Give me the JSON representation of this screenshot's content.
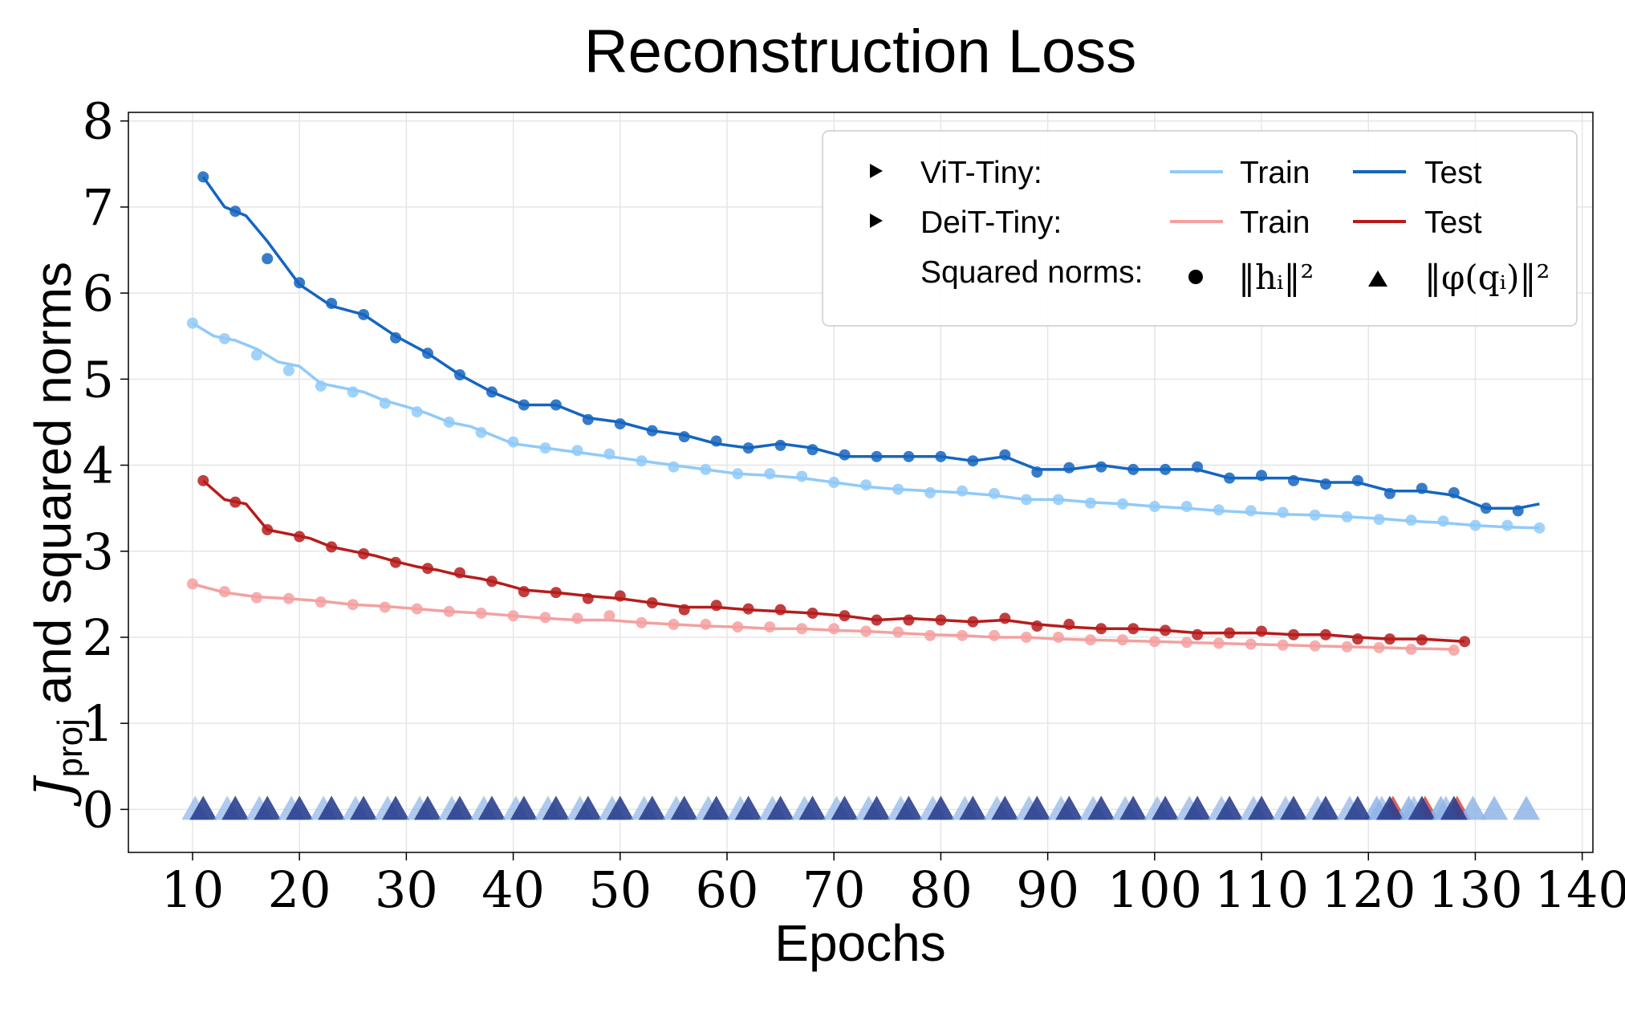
{
  "chart_data": {
    "type": "line",
    "title": "Reconstruction Loss",
    "xlabel": "Epochs",
    "ylabel_main": "J",
    "ylabel_sub": "proj",
    "ylabel_rest": " and squared norms",
    "xlim": [
      4,
      141
    ],
    "ylim": [
      -0.5,
      8.1
    ],
    "xticks": [
      10,
      20,
      30,
      40,
      50,
      60,
      70,
      80,
      90,
      100,
      110,
      120,
      130,
      140
    ],
    "yticks": [
      0,
      1,
      2,
      3,
      4,
      5,
      6,
      7,
      8
    ],
    "grid": true,
    "legend": {
      "placement": "top-right",
      "vit_label": "ViT-Tiny:",
      "deit_label": "DeiT-Tiny:",
      "train_label": "Train",
      "test_label": "Test",
      "norms_label": "Squared norms:",
      "h_label": "‖hᵢ‖²",
      "phi_label": "‖φ(qᵢ)‖²"
    },
    "colors": {
      "vit_train": "#90caf9",
      "vit_test": "#1565c0",
      "deit_train": "#f4a0a0",
      "deit_test": "#b71c1c",
      "triangle_blue": "#2b3f8f",
      "triangle_light": "#8fb4e8",
      "triangle_red": "#d64545"
    },
    "series": [
      {
        "name": "ViT-Tiny Test",
        "x": [
          11,
          13,
          15,
          17,
          20,
          23,
          26,
          29,
          32,
          35,
          38,
          41,
          44,
          47,
          50,
          53,
          56,
          59,
          62,
          65,
          68,
          71,
          74,
          77,
          80,
          83,
          86,
          89,
          92,
          95,
          98,
          101,
          104,
          107,
          110,
          113,
          116,
          119,
          122,
          125,
          128,
          131,
          134,
          136
        ],
        "y": [
          7.35,
          7.0,
          6.9,
          6.6,
          6.1,
          5.85,
          5.75,
          5.5,
          5.3,
          5.05,
          4.85,
          4.7,
          4.7,
          4.55,
          4.5,
          4.4,
          4.35,
          4.25,
          4.2,
          4.25,
          4.2,
          4.1,
          4.1,
          4.1,
          4.1,
          4.05,
          4.1,
          3.95,
          3.95,
          4.0,
          3.95,
          3.95,
          3.95,
          3.85,
          3.85,
          3.85,
          3.8,
          3.8,
          3.7,
          3.7,
          3.65,
          3.5,
          3.5,
          3.55
        ],
        "markers_x": [
          11,
          14,
          17,
          20,
          23,
          26,
          29,
          32,
          35,
          38,
          41,
          44,
          47,
          50,
          53,
          56,
          59,
          62,
          65,
          68,
          71,
          74,
          77,
          80,
          83,
          86,
          89,
          92,
          95,
          98,
          101,
          104,
          107,
          110,
          113,
          116,
          119,
          122,
          125,
          128,
          131,
          134
        ],
        "markers_y": [
          7.35,
          6.95,
          6.4,
          6.12,
          5.88,
          5.75,
          5.48,
          5.3,
          5.05,
          4.85,
          4.7,
          4.7,
          4.53,
          4.48,
          4.4,
          4.33,
          4.28,
          4.2,
          4.23,
          4.18,
          4.12,
          4.1,
          4.1,
          4.1,
          4.05,
          4.12,
          3.92,
          3.97,
          3.98,
          3.95,
          3.95,
          3.98,
          3.85,
          3.88,
          3.82,
          3.78,
          3.82,
          3.67,
          3.73,
          3.68,
          3.5,
          3.47
        ]
      },
      {
        "name": "ViT-Tiny Train",
        "x": [
          10,
          12,
          14,
          16,
          18,
          20,
          22,
          24,
          26,
          28,
          30,
          32,
          34,
          36,
          38,
          40,
          43,
          46,
          49,
          52,
          55,
          58,
          61,
          64,
          67,
          70,
          73,
          76,
          79,
          82,
          85,
          88,
          91,
          94,
          97,
          100,
          103,
          106,
          109,
          112,
          115,
          118,
          121,
          124,
          127,
          130,
          133,
          136
        ],
        "y": [
          5.65,
          5.5,
          5.45,
          5.35,
          5.2,
          5.15,
          4.95,
          4.9,
          4.85,
          4.75,
          4.68,
          4.6,
          4.5,
          4.45,
          4.35,
          4.25,
          4.2,
          4.15,
          4.1,
          4.05,
          4.0,
          3.95,
          3.9,
          3.88,
          3.85,
          3.8,
          3.75,
          3.72,
          3.7,
          3.68,
          3.65,
          3.6,
          3.6,
          3.57,
          3.55,
          3.52,
          3.5,
          3.47,
          3.45,
          3.43,
          3.42,
          3.4,
          3.38,
          3.35,
          3.33,
          3.3,
          3.28,
          3.27
        ],
        "markers_x": [
          10,
          13,
          16,
          19,
          22,
          25,
          28,
          31,
          34,
          37,
          40,
          43,
          46,
          49,
          52,
          55,
          58,
          61,
          64,
          67,
          70,
          73,
          76,
          79,
          82,
          85,
          88,
          91,
          94,
          97,
          100,
          103,
          106,
          109,
          112,
          115,
          118,
          121,
          124,
          127,
          130,
          133,
          136
        ],
        "markers_y": [
          5.65,
          5.47,
          5.28,
          5.1,
          4.92,
          4.85,
          4.72,
          4.62,
          4.5,
          4.38,
          4.27,
          4.2,
          4.17,
          4.13,
          4.05,
          3.98,
          3.95,
          3.9,
          3.9,
          3.87,
          3.8,
          3.77,
          3.72,
          3.68,
          3.7,
          3.67,
          3.6,
          3.6,
          3.56,
          3.55,
          3.52,
          3.52,
          3.48,
          3.47,
          3.45,
          3.42,
          3.4,
          3.37,
          3.36,
          3.35,
          3.3,
          3.3,
          3.27
        ]
      },
      {
        "name": "DeiT-Tiny Test",
        "x": [
          11,
          13,
          15,
          17,
          19,
          21,
          23,
          25,
          27,
          29,
          31,
          33,
          35,
          37,
          39,
          41,
          44,
          47,
          50,
          53,
          56,
          59,
          62,
          65,
          68,
          71,
          74,
          77,
          80,
          83,
          86,
          89,
          92,
          95,
          98,
          101,
          104,
          107,
          110,
          113,
          116,
          119,
          122,
          125,
          129
        ],
        "y": [
          3.82,
          3.6,
          3.55,
          3.25,
          3.2,
          3.15,
          3.05,
          3.0,
          2.95,
          2.88,
          2.82,
          2.78,
          2.72,
          2.68,
          2.62,
          2.55,
          2.52,
          2.48,
          2.45,
          2.4,
          2.35,
          2.35,
          2.32,
          2.3,
          2.28,
          2.25,
          2.2,
          2.22,
          2.2,
          2.18,
          2.2,
          2.15,
          2.12,
          2.1,
          2.1,
          2.08,
          2.05,
          2.05,
          2.05,
          2.03,
          2.03,
          2.0,
          1.98,
          1.98,
          1.95
        ],
        "markers_x": [
          11,
          14,
          17,
          20,
          23,
          26,
          29,
          32,
          35,
          38,
          41,
          44,
          47,
          50,
          53,
          56,
          59,
          62,
          65,
          68,
          71,
          74,
          77,
          80,
          83,
          86,
          89,
          92,
          95,
          98,
          101,
          104,
          107,
          110,
          113,
          116,
          119,
          122,
          125,
          129
        ],
        "markers_y": [
          3.82,
          3.57,
          3.25,
          3.17,
          3.05,
          2.97,
          2.87,
          2.8,
          2.75,
          2.65,
          2.53,
          2.52,
          2.45,
          2.48,
          2.4,
          2.32,
          2.37,
          2.33,
          2.32,
          2.28,
          2.25,
          2.2,
          2.2,
          2.2,
          2.18,
          2.22,
          2.13,
          2.15,
          2.1,
          2.1,
          2.08,
          2.03,
          2.05,
          2.07,
          2.03,
          2.03,
          1.98,
          1.98,
          1.97,
          1.95
        ]
      },
      {
        "name": "DeiT-Tiny Train",
        "x": [
          10,
          13,
          16,
          19,
          22,
          25,
          28,
          31,
          34,
          37,
          40,
          43,
          46,
          49,
          52,
          55,
          58,
          61,
          64,
          67,
          70,
          73,
          76,
          79,
          82,
          85,
          88,
          91,
          94,
          97,
          100,
          103,
          106,
          109,
          112,
          115,
          118,
          121,
          124,
          128
        ],
        "y": [
          2.62,
          2.52,
          2.47,
          2.45,
          2.42,
          2.38,
          2.36,
          2.33,
          2.3,
          2.28,
          2.25,
          2.22,
          2.2,
          2.2,
          2.17,
          2.15,
          2.13,
          2.12,
          2.1,
          2.1,
          2.08,
          2.07,
          2.05,
          2.03,
          2.02,
          2.0,
          2.0,
          1.98,
          1.97,
          1.96,
          1.95,
          1.94,
          1.93,
          1.92,
          1.91,
          1.9,
          1.89,
          1.88,
          1.87,
          1.86
        ],
        "markers_x": [
          10,
          13,
          16,
          19,
          22,
          25,
          28,
          31,
          34,
          37,
          40,
          43,
          46,
          49,
          52,
          55,
          58,
          61,
          64,
          67,
          70,
          73,
          76,
          79,
          82,
          85,
          88,
          91,
          94,
          97,
          100,
          103,
          106,
          109,
          112,
          115,
          118,
          121,
          124,
          128
        ],
        "markers_y": [
          2.62,
          2.53,
          2.46,
          2.45,
          2.41,
          2.38,
          2.35,
          2.33,
          2.3,
          2.28,
          2.25,
          2.23,
          2.22,
          2.25,
          2.17,
          2.15,
          2.15,
          2.12,
          2.12,
          2.1,
          2.1,
          2.07,
          2.06,
          2.02,
          2.02,
          2.02,
          2.0,
          2.0,
          1.97,
          1.97,
          1.95,
          1.94,
          1.93,
          1.92,
          1.91,
          1.9,
          1.89,
          1.88,
          1.86,
          1.85
        ]
      }
    ],
    "triangles": {
      "y": 0,
      "x_blue": [
        11,
        14,
        17,
        20,
        23,
        26,
        29,
        32,
        35,
        38,
        41,
        44,
        47,
        50,
        53,
        56,
        59,
        62,
        65,
        68,
        71,
        74,
        77,
        80,
        83,
        86,
        89,
        92,
        95,
        98,
        101,
        104,
        107,
        110,
        113,
        116,
        119,
        122,
        125,
        128
      ],
      "x_light": [
        121,
        124,
        127,
        130,
        132,
        135
      ],
      "x_red": [
        122,
        125,
        128
      ]
    }
  }
}
